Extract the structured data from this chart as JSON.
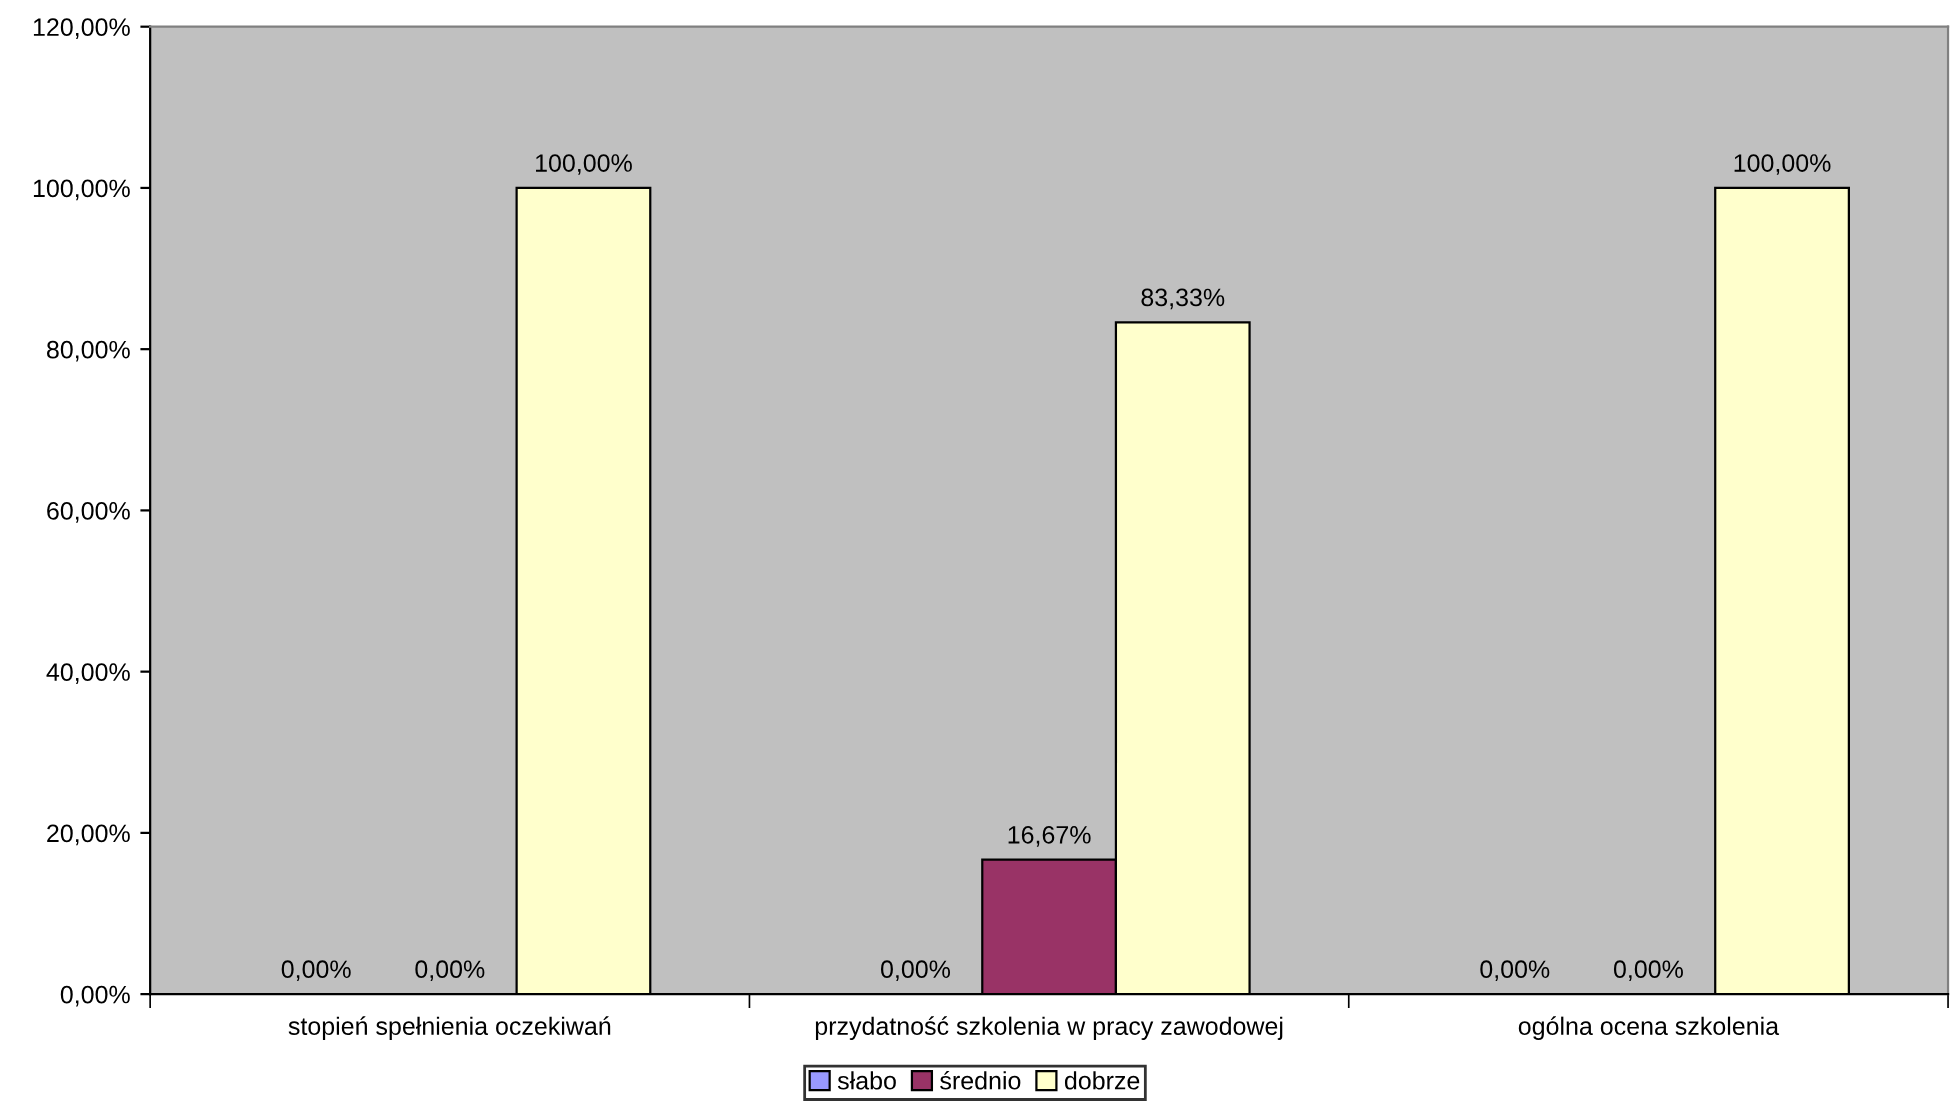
{
  "chart_data": {
    "type": "bar",
    "categories": [
      "stopień spełnienia oczekiwań",
      "przydatność szkolenia w pracy zawodowej",
      "ogólna ocena szkolenia"
    ],
    "series": [
      {
        "name": "słabo",
        "color": "#9999ff",
        "values": [
          0,
          0,
          0
        ],
        "value_labels": [
          "0,00%",
          "0,00%",
          "0,00%"
        ]
      },
      {
        "name": "średnio",
        "color": "#993366",
        "values": [
          0,
          16.67,
          0
        ],
        "value_labels": [
          "0,00%",
          "16,67%",
          "0,00%"
        ]
      },
      {
        "name": "dobrze",
        "color": "#ffffcc",
        "values": [
          100,
          83.33,
          100
        ],
        "value_labels": [
          "100,00%",
          "83,33%",
          "100,00%"
        ]
      }
    ],
    "ylim": [
      0,
      120
    ],
    "yticks": [
      {
        "value": 0,
        "label": "0,00%"
      },
      {
        "value": 20,
        "label": "20,00%"
      },
      {
        "value": 40,
        "label": "40,00%"
      },
      {
        "value": 60,
        "label": "60,00%"
      },
      {
        "value": 80,
        "label": "80,00%"
      },
      {
        "value": 100,
        "label": "100,00%"
      },
      {
        "value": 120,
        "label": "120,00%"
      }
    ],
    "grid": false,
    "legend": "bottom"
  }
}
